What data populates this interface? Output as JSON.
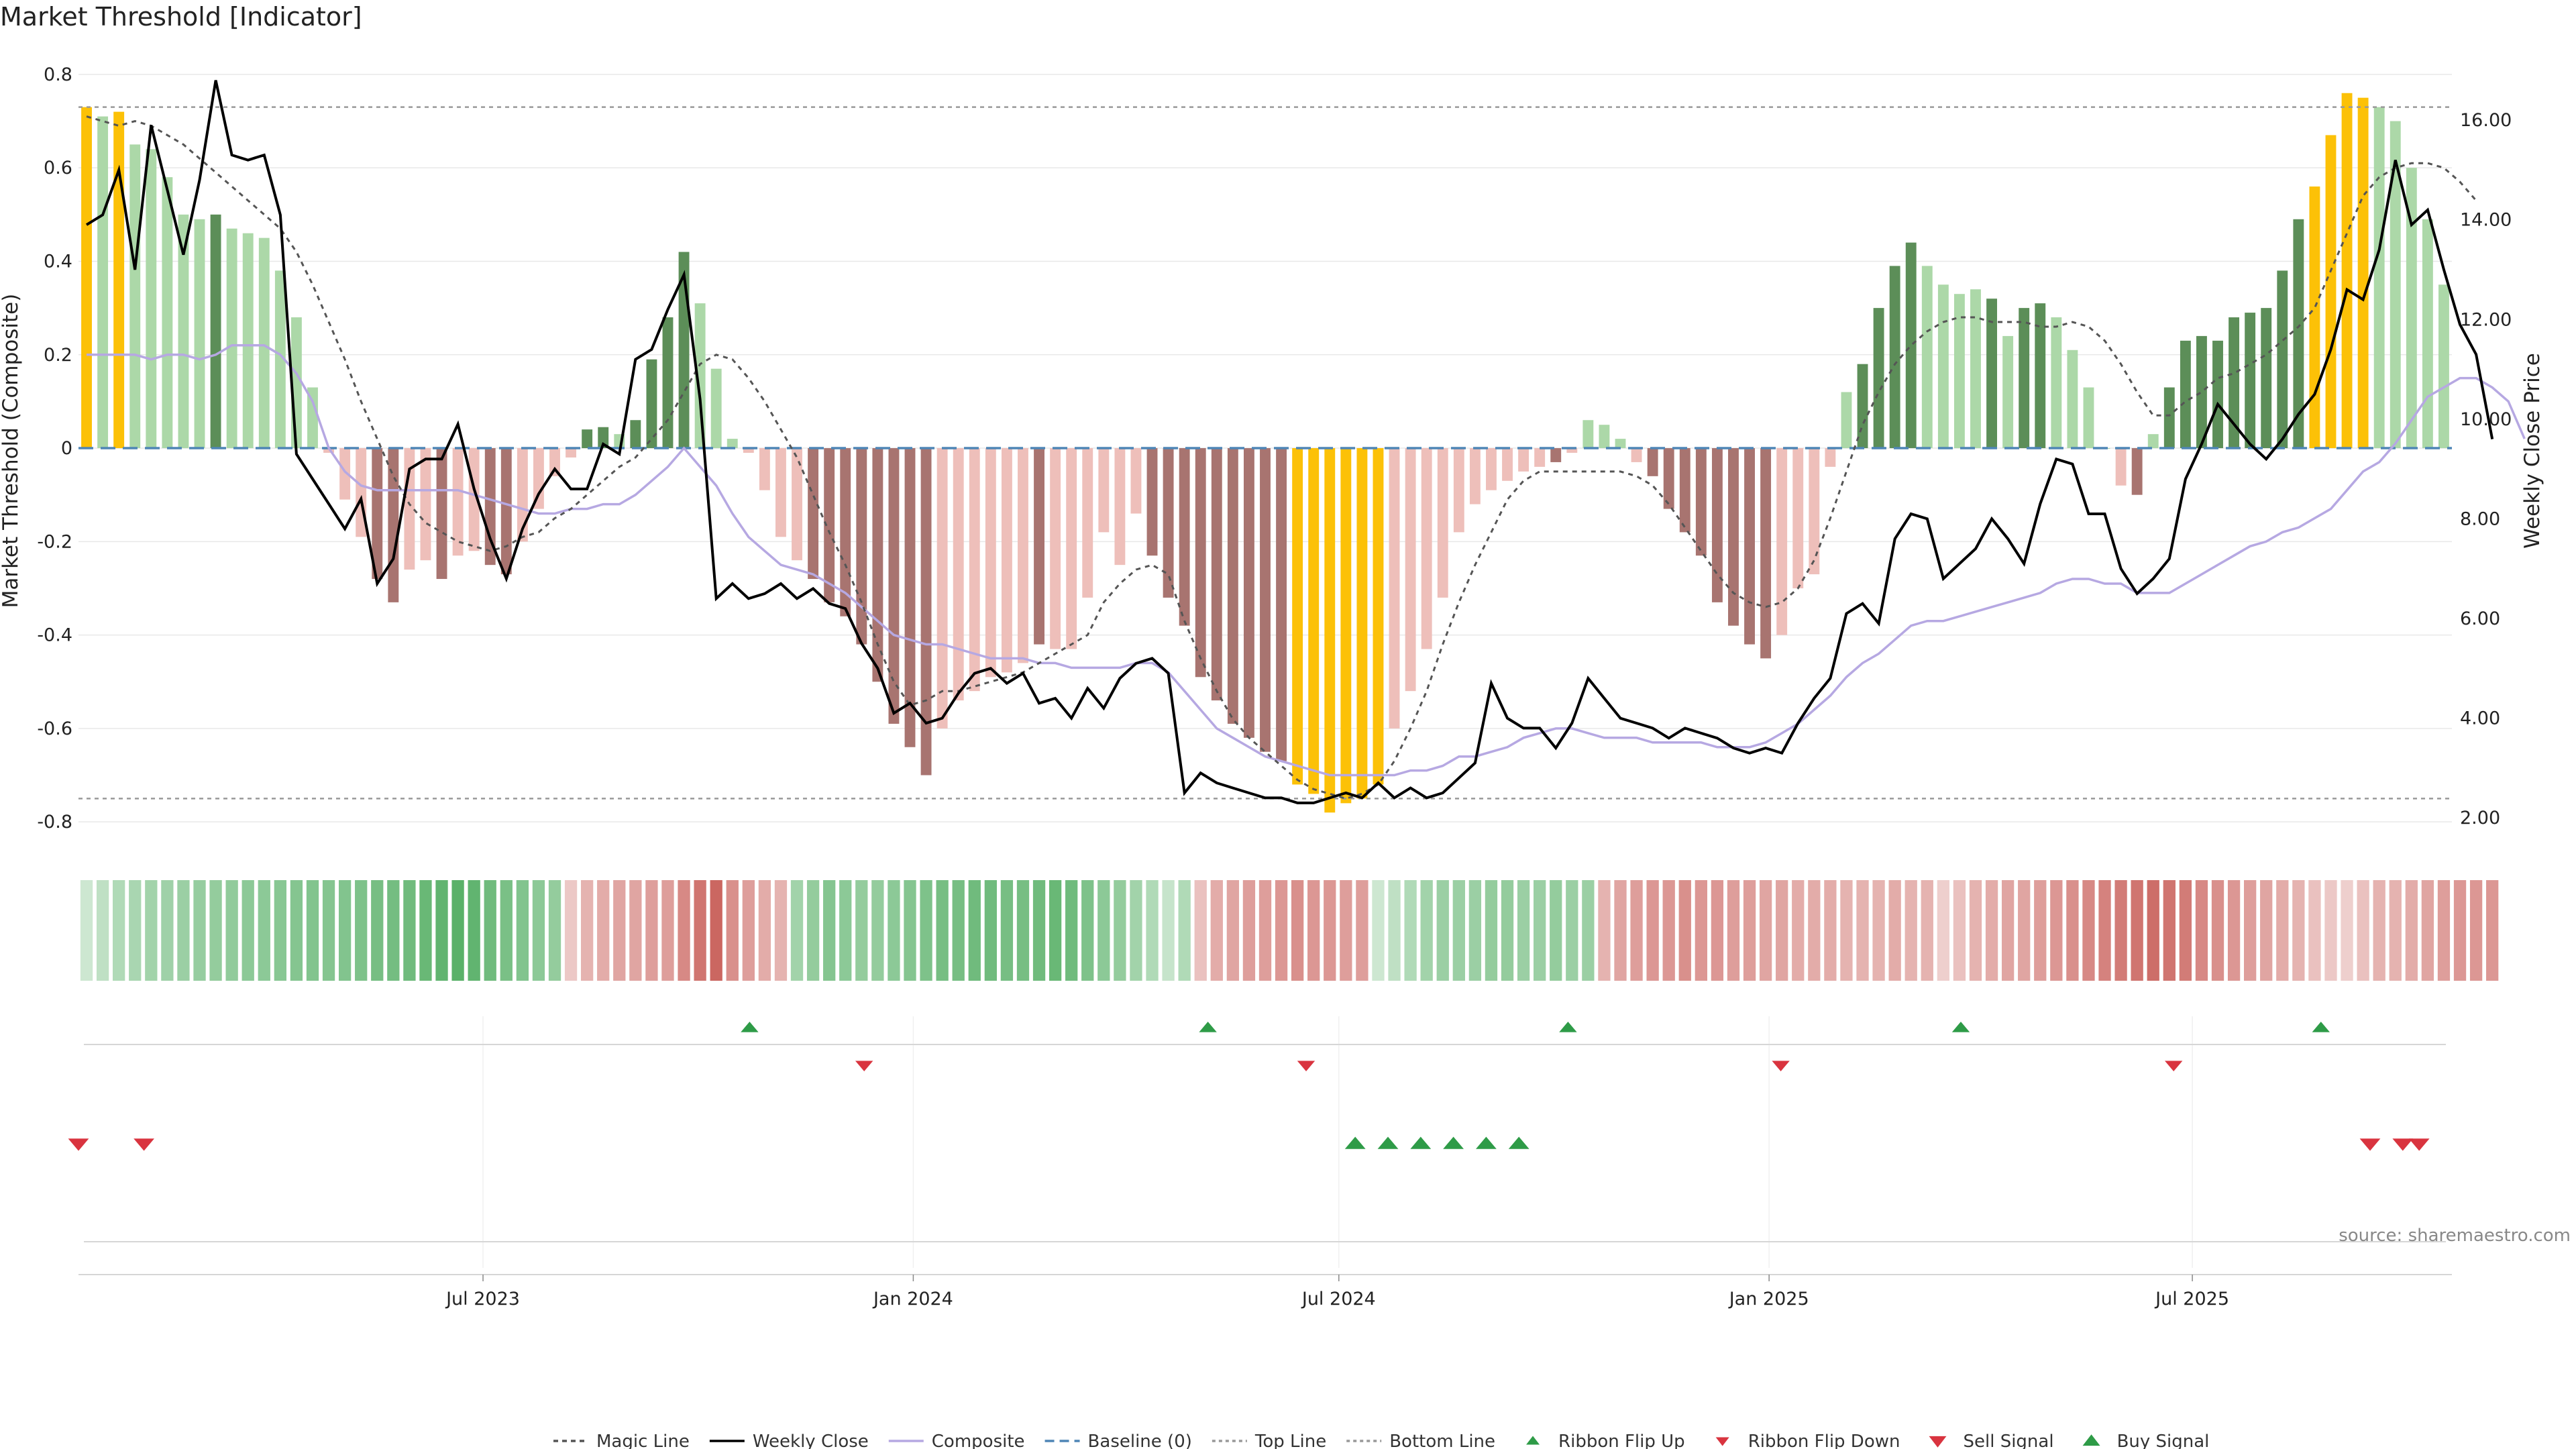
{
  "chart_data": {
    "type": "bar",
    "title": "Market Threshold [Indicator]",
    "ylabel": "Market Threshold (Composite)",
    "y2label": "Weekly Close Price",
    "ylim": [
      -0.85,
      0.83
    ],
    "y2lim": [
      1.45,
      17.2
    ],
    "yticks": [
      "0.8",
      "0.6",
      "0.4",
      "0.2",
      "0",
      "-0.2",
      "-0.4",
      "-0.6",
      "-0.8"
    ],
    "yticks_values": [
      0.8,
      0.6,
      0.4,
      0.2,
      0,
      -0.2,
      -0.4,
      -0.6,
      -0.8
    ],
    "y2ticks": [
      "16.00",
      "14.00",
      "12.00",
      "10.00",
      "8.00",
      "6.00",
      "4.00",
      "2.00"
    ],
    "y2ticks_values": [
      16,
      14,
      12,
      10,
      8,
      6,
      4,
      2
    ],
    "top_line": 0.73,
    "bottom_line": -0.75,
    "grid": true,
    "legend_position": "bottom",
    "x_start": "2023-01-09",
    "x_end": "2025-10-20",
    "xticks": [
      {
        "label": "Jul 2023",
        "date": "2023-07-01"
      },
      {
        "label": "Jan 2024",
        "date": "2024-01-01"
      },
      {
        "label": "Jul 2024",
        "date": "2024-07-01"
      },
      {
        "label": "Jan 2025",
        "date": "2025-01-01"
      },
      {
        "label": "Jul 2025",
        "date": "2025-07-01"
      }
    ],
    "composite_bars": [
      0.73,
      0.71,
      0.72,
      0.65,
      0.64,
      0.58,
      0.5,
      0.49,
      0.5,
      0.47,
      0.46,
      0.45,
      0.38,
      0.28,
      0.13,
      -0.01,
      -0.11,
      -0.19,
      -0.28,
      -0.33,
      -0.26,
      -0.24,
      -0.28,
      -0.23,
      -0.22,
      -0.25,
      -0.27,
      -0.2,
      -0.13,
      -0.06,
      -0.02,
      0.04,
      0.045,
      0.03,
      0.06,
      0.19,
      0.28,
      0.42,
      0.31,
      0.17,
      0.02,
      -0.01,
      -0.09,
      -0.19,
      -0.24,
      -0.28,
      -0.33,
      -0.36,
      -0.42,
      -0.5,
      -0.59,
      -0.64,
      -0.7,
      -0.6,
      -0.54,
      -0.52,
      -0.49,
      -0.48,
      -0.46,
      -0.42,
      -0.43,
      -0.43,
      -0.32,
      -0.18,
      -0.25,
      -0.14,
      -0.23,
      -0.32,
      -0.38,
      -0.49,
      -0.54,
      -0.59,
      -0.62,
      -0.65,
      -0.67,
      -0.72,
      -0.74,
      -0.78,
      -0.76,
      -0.75,
      -0.72,
      -0.6,
      -0.52,
      -0.43,
      -0.32,
      -0.18,
      -0.12,
      -0.09,
      -0.07,
      -0.05,
      -0.04,
      -0.03,
      -0.01,
      0.06,
      0.05,
      0.02,
      -0.03,
      -0.06,
      -0.13,
      -0.18,
      -0.23,
      -0.33,
      -0.38,
      -0.42,
      -0.45,
      -0.4,
      -0.3,
      -0.27,
      -0.04,
      0.12,
      0.18,
      0.3,
      0.39,
      0.44,
      0.39,
      0.35,
      0.33,
      0.34,
      0.32,
      0.24,
      0.3,
      0.31,
      0.28,
      0.21,
      0.13,
      0.0,
      -0.08,
      -0.1,
      0.03,
      0.13,
      0.23,
      0.24,
      0.23,
      0.28,
      0.29,
      0.3,
      0.38,
      0.49,
      0.56,
      0.67,
      0.76,
      0.75,
      0.73,
      0.7,
      0.6,
      0.49,
      0.35
    ],
    "bar_classes": [
      "y",
      "l",
      "y",
      "l",
      "l",
      "l",
      "l",
      "l",
      "d",
      "l",
      "l",
      "l",
      "l",
      "l",
      "l",
      "p",
      "p",
      "p",
      "r",
      "r",
      "p",
      "p",
      "r",
      "p",
      "p",
      "r",
      "r",
      "p",
      "p",
      "p",
      "p",
      "d",
      "d",
      "l",
      "d",
      "d",
      "d",
      "d",
      "l",
      "l",
      "l",
      "p",
      "p",
      "p",
      "p",
      "r",
      "r",
      "r",
      "r",
      "r",
      "r",
      "r",
      "r",
      "p",
      "p",
      "p",
      "p",
      "p",
      "p",
      "r",
      "p",
      "p",
      "p",
      "p",
      "p",
      "p",
      "r",
      "r",
      "r",
      "r",
      "r",
      "r",
      "r",
      "r",
      "r",
      "y",
      "y",
      "y",
      "y",
      "y",
      "y",
      "p",
      "p",
      "p",
      "p",
      "p",
      "p",
      "p",
      "p",
      "p",
      "p",
      "r",
      "p",
      "l",
      "l",
      "l",
      "p",
      "r",
      "r",
      "r",
      "r",
      "r",
      "r",
      "r",
      "r",
      "p",
      "p",
      "p",
      "p",
      "l",
      "d",
      "d",
      "d",
      "d",
      "l",
      "l",
      "l",
      "l",
      "d",
      "l",
      "d",
      "d",
      "l",
      "l",
      "l",
      "l",
      "p",
      "r",
      "l",
      "d",
      "d",
      "d",
      "d",
      "d",
      "d",
      "d",
      "d",
      "d",
      "y",
      "y",
      "y",
      "y",
      "l",
      "l",
      "l"
    ],
    "weekly_close": [
      13.9,
      14.1,
      15.0,
      13.0,
      15.9,
      14.6,
      13.3,
      14.8,
      16.8,
      15.3,
      15.2,
      15.3,
      14.1,
      9.3,
      8.8,
      8.3,
      7.8,
      8.4,
      6.7,
      7.2,
      9.0,
      9.2,
      9.2,
      9.9,
      8.6,
      7.6,
      6.8,
      7.8,
      8.5,
      9.0,
      8.6,
      8.6,
      9.5,
      9.3,
      11.2,
      11.4,
      12.2,
      12.9,
      10.4,
      6.4,
      6.7,
      6.4,
      6.5,
      6.7,
      6.4,
      6.6,
      6.3,
      6.2,
      5.5,
      5.0,
      4.1,
      4.3,
      3.9,
      4.0,
      4.5,
      4.9,
      5.0,
      4.7,
      4.9,
      4.3,
      4.4,
      4.0,
      4.6,
      4.2,
      4.8,
      5.1,
      5.2,
      4.9,
      2.5,
      2.9,
      2.7,
      2.6,
      2.5,
      2.4,
      2.4,
      2.3,
      2.3,
      2.4,
      2.5,
      2.4,
      2.7,
      2.4,
      2.6,
      2.4,
      2.5,
      2.8,
      3.1,
      4.7,
      4.0,
      3.8,
      3.8,
      3.4,
      3.9,
      4.8,
      4.4,
      4.0,
      3.9,
      3.8,
      3.6,
      3.8,
      3.7,
      3.6,
      3.4,
      3.3,
      3.4,
      3.3,
      3.9,
      4.4,
      4.8,
      6.1,
      6.3,
      5.9,
      7.6,
      8.1,
      8.0,
      6.8,
      7.1,
      7.4,
      8.0,
      7.6,
      7.1,
      8.3,
      9.2,
      9.1,
      8.1,
      8.1,
      7.0,
      6.5,
      6.8,
      7.2,
      8.8,
      9.5,
      10.3,
      9.9,
      9.5,
      9.2,
      9.6,
      10.1,
      10.5,
      11.4,
      12.6,
      12.4,
      13.4,
      15.2,
      13.9,
      14.2,
      13.0,
      11.9,
      11.3,
      9.6
    ],
    "magic_line": [
      0.71,
      0.7,
      0.69,
      0.7,
      0.69,
      0.67,
      0.65,
      0.62,
      0.59,
      0.56,
      0.53,
      0.5,
      0.47,
      0.42,
      0.35,
      0.27,
      0.19,
      0.1,
      0.02,
      -0.06,
      -0.12,
      -0.16,
      -0.18,
      -0.2,
      -0.21,
      -0.22,
      -0.21,
      -0.19,
      -0.18,
      -0.15,
      -0.13,
      -0.1,
      -0.07,
      -0.04,
      -0.02,
      0.02,
      0.06,
      0.12,
      0.18,
      0.2,
      0.19,
      0.15,
      0.1,
      0.04,
      -0.02,
      -0.1,
      -0.18,
      -0.25,
      -0.33,
      -0.42,
      -0.5,
      -0.55,
      -0.54,
      -0.52,
      -0.52,
      -0.51,
      -0.5,
      -0.49,
      -0.48,
      -0.46,
      -0.44,
      -0.42,
      -0.4,
      -0.33,
      -0.29,
      -0.26,
      -0.25,
      -0.27,
      -0.37,
      -0.45,
      -0.52,
      -0.58,
      -0.62,
      -0.65,
      -0.68,
      -0.71,
      -0.73,
      -0.74,
      -0.75,
      -0.74,
      -0.72,
      -0.67,
      -0.6,
      -0.52,
      -0.42,
      -0.33,
      -0.25,
      -0.18,
      -0.11,
      -0.07,
      -0.05,
      -0.05,
      -0.05,
      -0.05,
      -0.05,
      -0.05,
      -0.06,
      -0.08,
      -0.12,
      -0.17,
      -0.22,
      -0.27,
      -0.31,
      -0.33,
      -0.34,
      -0.33,
      -0.3,
      -0.24,
      -0.15,
      -0.05,
      0.05,
      0.12,
      0.18,
      0.22,
      0.25,
      0.27,
      0.28,
      0.28,
      0.27,
      0.27,
      0.27,
      0.26,
      0.26,
      0.27,
      0.26,
      0.23,
      0.18,
      0.12,
      0.07,
      0.07,
      0.1,
      0.12,
      0.15,
      0.16,
      0.18,
      0.2,
      0.23,
      0.26,
      0.3,
      0.38,
      0.46,
      0.54,
      0.58,
      0.6,
      0.61,
      0.61,
      0.6,
      0.57,
      0.53
    ],
    "composite_line": [
      0.2,
      0.2,
      0.2,
      0.2,
      0.19,
      0.2,
      0.2,
      0.19,
      0.2,
      0.22,
      0.22,
      0.22,
      0.2,
      0.16,
      0.1,
      0.0,
      -0.05,
      -0.08,
      -0.09,
      -0.09,
      -0.09,
      -0.09,
      -0.09,
      -0.09,
      -0.1,
      -0.11,
      -0.12,
      -0.13,
      -0.14,
      -0.14,
      -0.13,
      -0.13,
      -0.12,
      -0.12,
      -0.1,
      -0.07,
      -0.04,
      0.0,
      -0.04,
      -0.08,
      -0.14,
      -0.19,
      -0.22,
      -0.25,
      -0.26,
      -0.27,
      -0.29,
      -0.31,
      -0.34,
      -0.37,
      -0.4,
      -0.41,
      -0.42,
      -0.42,
      -0.43,
      -0.44,
      -0.45,
      -0.45,
      -0.45,
      -0.46,
      -0.46,
      -0.47,
      -0.47,
      -0.47,
      -0.47,
      -0.46,
      -0.46,
      -0.48,
      -0.52,
      -0.56,
      -0.6,
      -0.62,
      -0.64,
      -0.66,
      -0.67,
      -0.68,
      -0.69,
      -0.7,
      -0.7,
      -0.7,
      -0.7,
      -0.7,
      -0.69,
      -0.69,
      -0.68,
      -0.66,
      -0.66,
      -0.65,
      -0.64,
      -0.62,
      -0.61,
      -0.6,
      -0.6,
      -0.61,
      -0.62,
      -0.62,
      -0.62,
      -0.63,
      -0.63,
      -0.63,
      -0.63,
      -0.64,
      -0.64,
      -0.64,
      -0.63,
      -0.61,
      -0.59,
      -0.56,
      -0.53,
      -0.49,
      -0.46,
      -0.44,
      -0.41,
      -0.38,
      -0.37,
      -0.37,
      -0.36,
      -0.35,
      -0.34,
      -0.33,
      -0.32,
      -0.31,
      -0.29,
      -0.28,
      -0.28,
      -0.29,
      -0.29,
      -0.31,
      -0.31,
      -0.31,
      -0.29,
      -0.27,
      -0.25,
      -0.23,
      -0.21,
      -0.2,
      -0.18,
      -0.17,
      -0.15,
      -0.13,
      -0.09,
      -0.05,
      -0.03,
      0.01,
      0.06,
      0.11,
      0.13,
      0.15,
      0.15,
      0.13,
      0.1,
      0.02
    ],
    "ribbon_values": [
      0.1,
      0.2,
      0.3,
      0.35,
      0.4,
      0.42,
      0.45,
      0.48,
      0.5,
      0.52,
      0.55,
      0.55,
      0.58,
      0.6,
      0.62,
      0.6,
      0.62,
      0.65,
      0.7,
      0.72,
      0.75,
      0.8,
      0.85,
      0.9,
      0.85,
      0.75,
      0.68,
      0.62,
      0.55,
      0.5,
      -0.15,
      -0.3,
      -0.35,
      -0.4,
      -0.4,
      -0.45,
      -0.45,
      -0.6,
      -0.75,
      -0.85,
      -0.55,
      -0.45,
      -0.35,
      -0.3,
      0.4,
      0.5,
      0.6,
      0.55,
      0.5,
      0.5,
      0.55,
      0.6,
      0.65,
      0.7,
      0.7,
      0.75,
      0.75,
      0.7,
      0.7,
      0.75,
      0.8,
      0.75,
      0.65,
      0.55,
      0.5,
      0.4,
      0.3,
      0.15,
      0.3,
      -0.2,
      -0.35,
      -0.4,
      -0.45,
      -0.45,
      -0.5,
      -0.55,
      -0.5,
      -0.5,
      -0.45,
      -0.45,
      0.1,
      0.2,
      0.3,
      0.4,
      0.45,
      0.45,
      0.45,
      0.5,
      0.5,
      0.45,
      0.45,
      0.5,
      0.45,
      0.45,
      -0.3,
      -0.4,
      -0.45,
      -0.5,
      -0.5,
      -0.55,
      -0.5,
      -0.5,
      -0.45,
      -0.45,
      -0.4,
      -0.4,
      -0.35,
      -0.35,
      -0.35,
      -0.3,
      -0.3,
      -0.3,
      -0.35,
      -0.3,
      -0.3,
      -0.1,
      -0.2,
      -0.3,
      -0.35,
      -0.4,
      -0.4,
      -0.45,
      -0.5,
      -0.55,
      -0.6,
      -0.65,
      -0.7,
      -0.75,
      -0.8,
      -0.75,
      -0.7,
      -0.6,
      -0.55,
      -0.5,
      -0.45,
      -0.4,
      -0.35,
      -0.3,
      -0.2,
      -0.15,
      -0.1,
      -0.2,
      -0.3,
      -0.3,
      -0.35,
      -0.4,
      -0.45,
      -0.5,
      -0.5,
      -0.5
    ],
    "ribbon_flip_up": [
      "2023-10-23",
      "2024-05-06",
      "2024-10-07",
      "2025-03-24",
      "2025-08-25"
    ],
    "ribbon_flip_down": [
      "2023-12-11",
      "2024-06-17",
      "2025-01-06",
      "2025-06-23"
    ],
    "sell_signal": [
      "2023-01-09",
      "2023-02-06",
      "2025-09-15",
      "2025-09-29",
      "2025-10-06"
    ],
    "buy_signal": [
      "2024-07-08",
      "2024-07-22",
      "2024-08-05",
      "2024-08-19",
      "2024-09-02",
      "2024-09-16"
    ],
    "legend": [
      "Magic Line",
      "Weekly Close",
      "Composite",
      "Baseline (0)",
      "Top Line",
      "Bottom Line",
      "Ribbon Flip Up",
      "Ribbon Flip Down",
      "Sell Signal",
      "Buy Signal"
    ],
    "source": "source: sharemaestro.com",
    "colors": {
      "pale_green": "#acd8a8",
      "dark_green": "#5c8e58",
      "pale_red": "#eebfba",
      "dark_red": "#a87470",
      "gold": "#fcc107",
      "weekly_close": "#000000",
      "composite": "#b6a8e2",
      "magic_line": "#555555",
      "baseline": "#4f86b6",
      "up_marker": "#2e9b47",
      "down_marker": "#d9343f",
      "grid": "#e8e8e8"
    }
  }
}
